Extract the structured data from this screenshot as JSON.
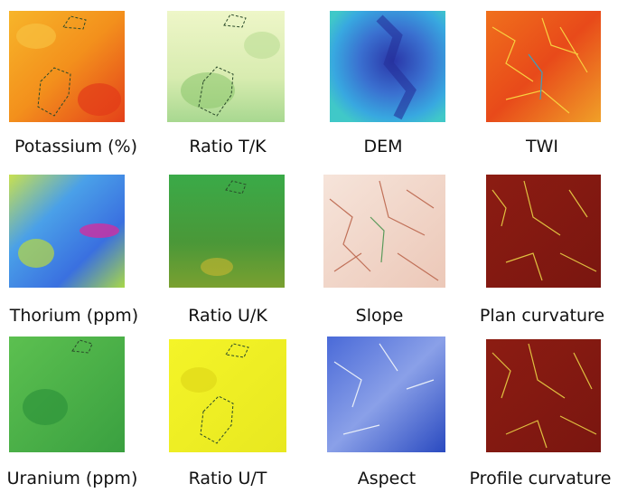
{
  "panels": [
    {
      "label": "Potassium (%)"
    },
    {
      "label": "Ratio T/K"
    },
    {
      "label": "DEM"
    },
    {
      "label": "TWI"
    },
    {
      "label": "Thorium (ppm)"
    },
    {
      "label": "Ratio U/K"
    },
    {
      "label": "Slope"
    },
    {
      "label": "Plan curvature"
    },
    {
      "label": "Uranium (ppm)"
    },
    {
      "label": "Ratio U/T"
    },
    {
      "label": "Aspect"
    },
    {
      "label": "Profile curvature"
    }
  ]
}
